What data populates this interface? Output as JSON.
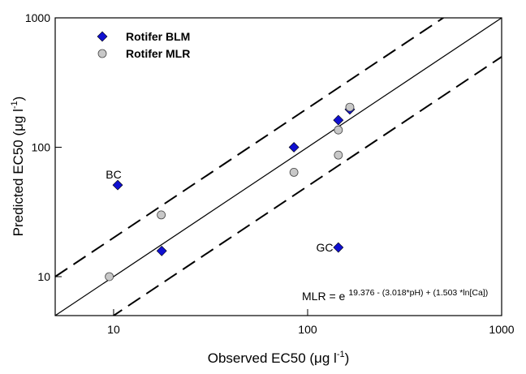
{
  "chart_data": {
    "type": "scatter",
    "x_label": {
      "text": "Observed EC50 (μg l",
      "sup": "-1",
      "tail": ")"
    },
    "y_label": {
      "text": "Predicted EC50 (μg l",
      "sup": "-1",
      "tail": ")"
    },
    "xlim": [
      5,
      1000
    ],
    "ylim": [
      5,
      1000
    ],
    "xticks": [
      10,
      100,
      1000
    ],
    "yticks": [
      10,
      100,
      1000
    ],
    "log_x": true,
    "log_y": true,
    "legend": "upper left",
    "reference_lines": [
      {
        "factor": 1,
        "style": "solid"
      },
      {
        "factor": 2,
        "style": "dashed"
      },
      {
        "factor": 0.5,
        "style": "dashed"
      }
    ],
    "series": [
      {
        "name": "Rotifer BLM",
        "marker": "diamond",
        "color": "#1010d0",
        "x": [
          10.5,
          17.7,
          85,
          144,
          165,
          144
        ],
        "values": [
          51,
          15.8,
          100,
          162,
          196,
          16.8
        ]
      },
      {
        "name": "Rotifer MLR",
        "marker": "circle",
        "color": "#c8c8c8",
        "x": [
          9.5,
          17.6,
          85,
          144,
          144,
          165
        ],
        "values": [
          10,
          30,
          64,
          136,
          87,
          204
        ]
      }
    ],
    "annotations": [
      "BC",
      "GC"
    ],
    "formula": {
      "text": "MLR = e",
      "sup": "19.376 - (3.018*pH) + (1.503 *ln[Ca])"
    }
  }
}
